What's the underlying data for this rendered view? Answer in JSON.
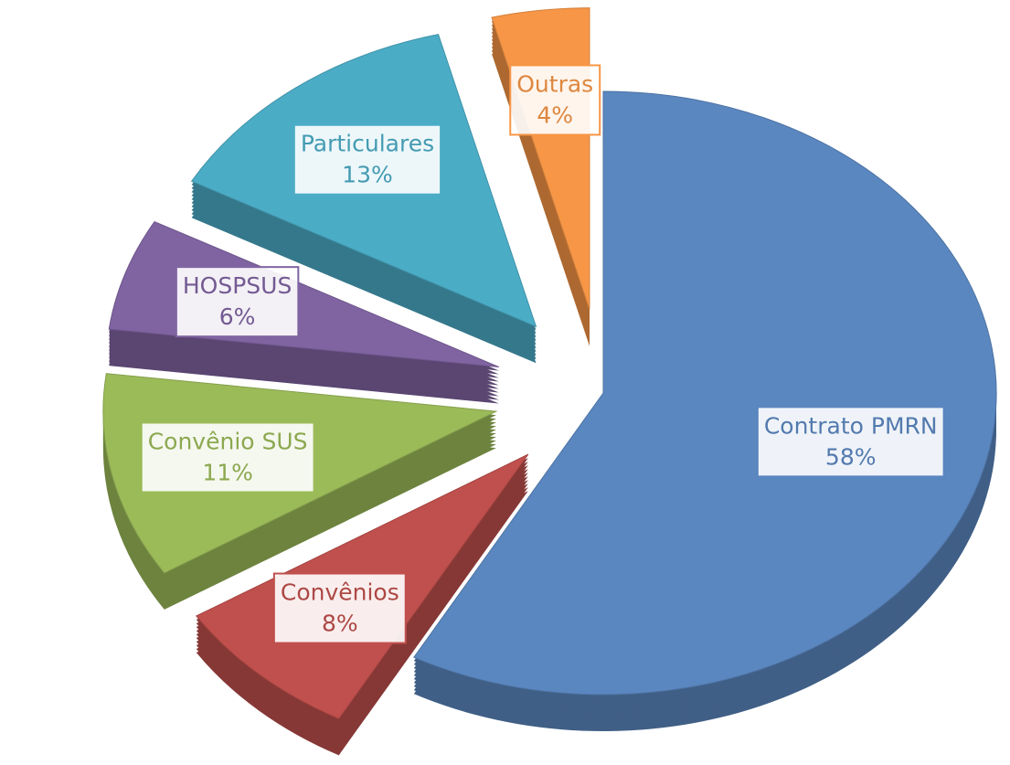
{
  "chart_data": {
    "type": "pie",
    "categories": [
      "Contrato PMRN",
      "Convênios",
      "Convênio SUS",
      "HOSPSUS",
      "Particulares",
      "Outras"
    ],
    "values": [
      58,
      8,
      11,
      6,
      13,
      4
    ],
    "value_labels": [
      "58%",
      "8%",
      "11%",
      "6%",
      "13%",
      "4%"
    ],
    "colors": [
      "#5b87c0",
      "#c0504d",
      "#9bbb59",
      "#8064a2",
      "#4bacc6",
      "#f79646"
    ]
  }
}
